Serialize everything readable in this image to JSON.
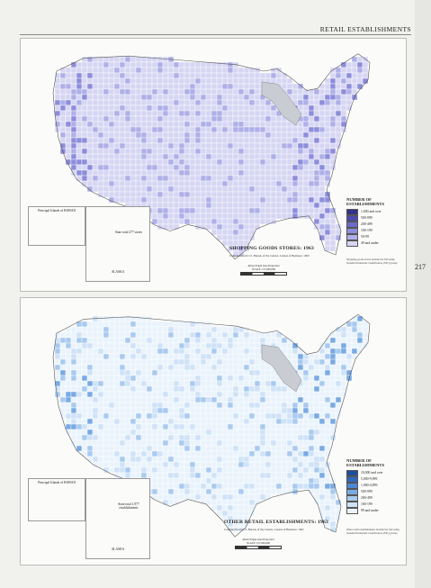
{
  "running_head": "RETAIL ESTABLISHMENTS",
  "page_number": "217",
  "maps": [
    {
      "title": "SHOPPING GOODS STORES: 1963",
      "source": "Compiled from U.S. Bureau of the Census, Census of Business: 1963",
      "projection": "Albers Equal Area Projection",
      "scale": "SCALE 1:17,000,000",
      "note": "Shopping goods stores include the following Standard Industrial Classification (SIC) groups",
      "legend_title": "NUMBER OF ESTABLISHMENTS",
      "legend": [
        {
          "label": "1,000 and over",
          "color": "#33338a"
        },
        {
          "label": "500-999",
          "color": "#4a4aaf"
        },
        {
          "label": "200-499",
          "color": "#6b6bcc"
        },
        {
          "label": "100-199",
          "color": "#8d8ddc"
        },
        {
          "label": "50-99",
          "color": "#afafe8"
        },
        {
          "label": "49 and under",
          "color": "#d6d6f3"
        }
      ],
      "hawaii_label": "Principal Islands of HAWAII",
      "alaska_label": "ALASKA",
      "alaska_note": "State total 277 stores"
    },
    {
      "title": "OTHER RETAIL ESTABLISHMENTS: 1963",
      "source": "Compiled from U.S. Bureau of the Census, Census of Business: 1963",
      "projection": "Albers Equal Area Projection",
      "scale": "SCALE 1:17,000,000",
      "note": "Other retail establishments include the following Standard Industrial Classification (SIC) groups",
      "legend_title": "NUMBER OF ESTABLISHMENTS",
      "legend": [
        {
          "label": "10,000 and over",
          "color": "#1f4f9c"
        },
        {
          "label": "5,000-9,999",
          "color": "#2e69bf"
        },
        {
          "label": "1,000-4,999",
          "color": "#4d88d6"
        },
        {
          "label": "500-999",
          "color": "#7aaae3"
        },
        {
          "label": "200-499",
          "color": "#a9caef"
        },
        {
          "label": "100-199",
          "color": "#cfe2f7"
        },
        {
          "label": "99 and under",
          "color": "#eaf3fc"
        }
      ],
      "hawaii_label": "Principal Islands of HAWAII",
      "alaska_label": "ALASKA",
      "alaska_note": "State total 1,977 establishments"
    }
  ],
  "colors": {
    "lakes": "#c9ccd2",
    "border": "#ffffff"
  }
}
